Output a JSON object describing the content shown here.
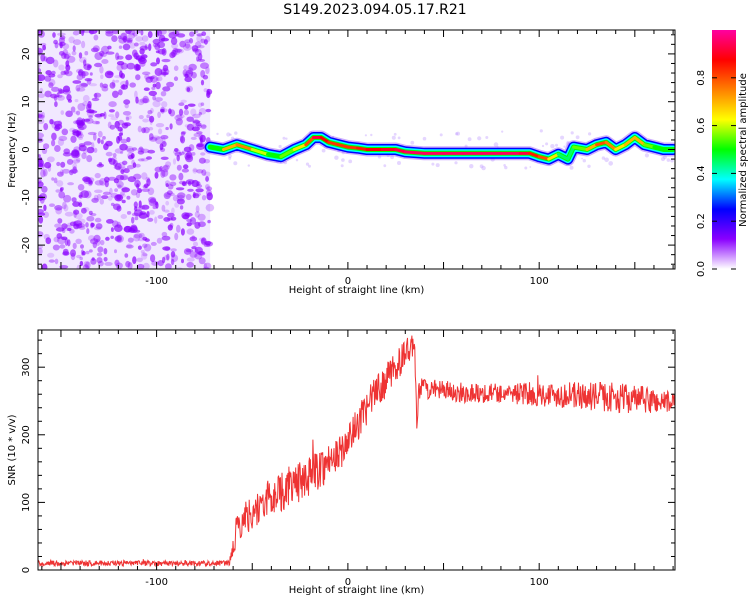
{
  "title": "S149.2023.094.05.17.R21",
  "chart_data": [
    {
      "type": "heatmap",
      "xlabel": "Height of straight line (km)",
      "ylabel": "Frequency (Hz)",
      "xlim": [
        -162,
        171
      ],
      "ylim": [
        -25,
        25
      ],
      "xticks": [
        -100,
        0,
        100
      ],
      "yticks": [
        -20,
        -10,
        0,
        10,
        20
      ],
      "colorbar": {
        "label": "Normalized spectral amplitude",
        "range": [
          0,
          1
        ],
        "ticks": [
          0.0,
          0.2,
          0.4,
          0.6,
          0.8
        ],
        "colormap": [
          "#ffffff",
          "#8a00ff",
          "#0000ff",
          "#00ffff",
          "#00ff00",
          "#ffff00",
          "#ff8000",
          "#ff0000",
          "#ff00a0"
        ]
      },
      "noise_region_x": [
        -162,
        -72
      ],
      "ridge": {
        "x": [
          -72,
          -65,
          -58,
          -50,
          -42,
          -35,
          -28,
          -22,
          -18,
          -14,
          -10,
          -5,
          0,
          5,
          10,
          18,
          25,
          30,
          40,
          50,
          60,
          70,
          80,
          90,
          95,
          100,
          105,
          110,
          115,
          118,
          125,
          130,
          135,
          140,
          145,
          150,
          155,
          160,
          165,
          170
        ],
        "freq": [
          0.5,
          0.0,
          1.0,
          0.0,
          -1.0,
          -1.5,
          0.0,
          1.0,
          2.5,
          2.5,
          1.5,
          1.0,
          0.5,
          0.3,
          0.0,
          0.0,
          0.0,
          -0.5,
          -0.8,
          -0.8,
          -0.8,
          -0.8,
          -0.8,
          -0.8,
          -0.8,
          -1.5,
          -2.0,
          -1.0,
          -2.0,
          0.5,
          0.0,
          1.0,
          1.5,
          0.0,
          1.0,
          2.5,
          1.0,
          0.5,
          0.0,
          0.0
        ],
        "amplitude": [
          0.4,
          0.6,
          0.8,
          0.7,
          0.5,
          0.5,
          0.6,
          0.7,
          0.9,
          0.95,
          0.8,
          0.85,
          0.8,
          0.85,
          0.85,
          0.9,
          0.9,
          0.95,
          0.95,
          0.95,
          0.95,
          0.95,
          0.95,
          0.95,
          0.9,
          0.8,
          0.8,
          0.5,
          0.4,
          0.5,
          0.6,
          0.8,
          0.8,
          0.7,
          0.6,
          0.8,
          0.6,
          0.5,
          0.5,
          0.5
        ]
      }
    },
    {
      "type": "line",
      "xlabel": "Height of straight line (km)",
      "ylabel": "SNR (10 * v/v)",
      "xlim": [
        -162,
        171
      ],
      "ylim": [
        0,
        355
      ],
      "xticks": [
        -100,
        0,
        100
      ],
      "yticks": [
        0,
        100,
        200,
        300
      ],
      "color": "#ee3333",
      "series": [
        {
          "x": [
            -162,
            -120,
            -80,
            -62,
            -58,
            -55,
            -50,
            -45,
            -40,
            -35,
            -30,
            -25,
            -20,
            -15,
            -10,
            -5,
            0,
            5,
            10,
            15,
            20,
            25,
            30,
            33,
            35,
            36,
            37,
            38,
            40,
            50,
            60,
            80,
            100,
            120,
            140,
            160,
            171
          ],
          "values": [
            10,
            10,
            10,
            10,
            60,
            75,
            85,
            95,
            110,
            115,
            125,
            130,
            140,
            150,
            160,
            170,
            190,
            215,
            240,
            265,
            280,
            300,
            320,
            330,
            325,
            210,
            260,
            270,
            268,
            265,
            262,
            262,
            260,
            258,
            255,
            250,
            248
          ],
          "noise_amplitude": [
            4,
            4,
            4,
            4,
            25,
            25,
            25,
            25,
            30,
            30,
            30,
            30,
            30,
            30,
            30,
            25,
            25,
            25,
            25,
            25,
            25,
            25,
            20,
            20,
            20,
            10,
            15,
            15,
            15,
            15,
            15,
            15,
            18,
            20,
            22,
            20,
            15
          ]
        }
      ]
    }
  ]
}
